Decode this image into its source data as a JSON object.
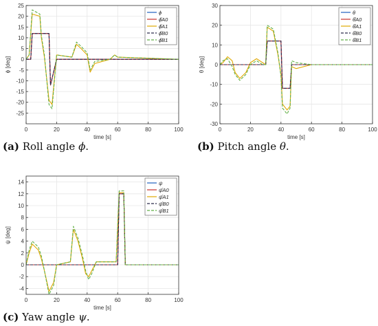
{
  "captions": [
    {
      "label": "(a)",
      "text": "Roll angle",
      "symbol": "ϕ",
      "end": "."
    },
    {
      "label": "(b)",
      "text": "Pitch angle",
      "symbol": "θ",
      "end": "."
    },
    {
      "label": "(c)",
      "text": "Yaw angle",
      "symbol": "ψ",
      "end": "."
    }
  ],
  "chart_data": [
    {
      "type": "line",
      "xlabel": "time [s]",
      "ylabel": "ϕ [deg]",
      "xlim": [
        0,
        100
      ],
      "ylim": [
        -30,
        25
      ],
      "xticks": [
        0,
        20,
        40,
        60,
        80,
        100
      ],
      "yticks": [
        25,
        20,
        15,
        10,
        5,
        0,
        -5,
        -10,
        -15,
        -20,
        -25
      ],
      "grid": true,
      "legend": "top-right",
      "series": [
        {
          "name": "ϕ",
          "color": "#1f5fbf",
          "dash": "",
          "x": [
            0,
            3,
            4,
            15,
            16,
            20,
            100
          ],
          "y": [
            0,
            0,
            12,
            12,
            -12,
            0,
            0
          ]
        },
        {
          "name": "ϕ̂A0",
          "color": "#c8302a",
          "dash": "",
          "x": [
            0,
            3,
            4,
            15,
            16,
            20,
            100
          ],
          "y": [
            0,
            0,
            12,
            12,
            -12,
            0,
            0
          ]
        },
        {
          "name": "ϕ̂A1",
          "color": "#e0a800",
          "dash": "",
          "x": [
            0,
            2,
            4,
            9,
            10,
            12,
            15,
            17,
            20,
            30,
            33,
            36,
            40,
            42,
            45,
            55,
            58,
            60,
            100
          ],
          "y": [
            0,
            2,
            21,
            20,
            10,
            1,
            -19,
            -21,
            2,
            1,
            7,
            5,
            2,
            -6,
            -2,
            0,
            2,
            1,
            0
          ]
        },
        {
          "name": "ϕ̂B0",
          "color": "#2a2a4a",
          "dash": "4,2",
          "x": [
            0,
            3,
            4,
            15,
            16,
            20,
            100
          ],
          "y": [
            0,
            0,
            12,
            12,
            -12,
            0,
            0
          ]
        },
        {
          "name": "ϕ̂B1",
          "color": "#62b048",
          "dash": "4,2",
          "x": [
            0,
            2,
            4,
            9,
            10,
            12,
            15,
            17,
            20,
            30,
            33,
            36,
            40,
            42,
            45,
            55,
            58,
            60,
            100
          ],
          "y": [
            0,
            2,
            23,
            21,
            11,
            2,
            -21,
            -23,
            2,
            1,
            8,
            6,
            3,
            -5,
            -1,
            0,
            2,
            1,
            0
          ]
        }
      ]
    },
    {
      "type": "line",
      "xlabel": "time [s]",
      "ylabel": "θ [deg]",
      "xlim": [
        0,
        100
      ],
      "ylim": [
        -30,
        30
      ],
      "xticks": [
        0,
        20,
        40,
        60,
        80,
        100
      ],
      "yticks": [
        30,
        20,
        10,
        0,
        -10,
        -20,
        -30
      ],
      "grid": true,
      "legend": "top-right",
      "series": [
        {
          "name": "θ",
          "color": "#1f5fbf",
          "dash": "",
          "x": [
            0,
            30,
            31,
            40,
            41,
            46,
            47,
            100
          ],
          "y": [
            0,
            0,
            12,
            12,
            -12,
            -12,
            0,
            0
          ]
        },
        {
          "name": "θ̂A0",
          "color": "#c8302a",
          "dash": "",
          "x": [
            0,
            30,
            31,
            40,
            41,
            46,
            47,
            100
          ],
          "y": [
            0,
            0,
            12,
            12,
            -12,
            -12,
            0,
            0
          ]
        },
        {
          "name": "θ̂A1",
          "color": "#e0a800",
          "dash": "",
          "x": [
            0,
            2,
            5,
            8,
            10,
            13,
            17,
            20,
            24,
            28,
            30,
            31,
            35,
            38,
            40,
            41,
            44,
            46,
            47,
            50,
            60,
            100
          ],
          "y": [
            0,
            1,
            4,
            2,
            -4,
            -7,
            -4,
            1,
            3,
            1,
            0,
            19,
            17,
            5,
            -5,
            -20,
            -23,
            -21,
            -1,
            -2,
            0,
            0
          ]
        },
        {
          "name": "θ̂B0",
          "color": "#2a2a4a",
          "dash": "4,2",
          "x": [
            0,
            30,
            31,
            40,
            41,
            46,
            47,
            100
          ],
          "y": [
            0,
            0,
            12,
            12,
            -12,
            -12,
            0,
            0
          ]
        },
        {
          "name": "θ̂B1",
          "color": "#62b048",
          "dash": "4,2",
          "x": [
            0,
            2,
            5,
            8,
            10,
            13,
            17,
            20,
            24,
            28,
            30,
            31,
            35,
            38,
            40,
            41,
            44,
            46,
            47,
            50,
            60,
            100
          ],
          "y": [
            0,
            2,
            3,
            -1,
            -5,
            -8,
            -5,
            0,
            2,
            0,
            0,
            20,
            18,
            6,
            -6,
            -22,
            -25,
            -22,
            2,
            1,
            0,
            0
          ]
        }
      ]
    },
    {
      "type": "line",
      "xlabel": "time [s]",
      "ylabel": "ψ [deg]",
      "xlim": [
        0,
        100
      ],
      "ylim": [
        -5,
        15
      ],
      "xticks": [
        0,
        20,
        40,
        60,
        80,
        100
      ],
      "yticks": [
        14,
        12,
        10,
        8,
        6,
        4,
        2,
        0,
        -2,
        -4
      ],
      "grid": true,
      "legend": "top-right",
      "series": [
        {
          "name": "ψ",
          "color": "#1f5fbf",
          "dash": "",
          "x": [
            0,
            60,
            61,
            64,
            65,
            100
          ],
          "y": [
            0,
            0,
            12,
            12,
            0,
            0
          ]
        },
        {
          "name": "ψ̂A0",
          "color": "#c8302a",
          "dash": "",
          "x": [
            0,
            60,
            61,
            64,
            65,
            100
          ],
          "y": [
            0,
            0,
            12,
            12,
            0,
            0
          ]
        },
        {
          "name": "ψ̂A1",
          "color": "#e0a800",
          "dash": "",
          "x": [
            0,
            2,
            4,
            8,
            10,
            12,
            15,
            18,
            20,
            29,
            31,
            34,
            37,
            39,
            41,
            43,
            46,
            50,
            59,
            61,
            64,
            65,
            70,
            100
          ],
          "y": [
            0,
            2,
            3.5,
            2.5,
            1,
            -1,
            -4.5,
            -3,
            0,
            0.5,
            6,
            4,
            1,
            -1.5,
            -2,
            -1,
            0.5,
            0.5,
            0.5,
            12.2,
            12.2,
            0,
            0,
            0
          ]
        },
        {
          "name": "ψ̂B0",
          "color": "#2a2a4a",
          "dash": "4,2",
          "x": [
            0,
            60,
            61,
            64,
            65,
            100
          ],
          "y": [
            0,
            0,
            12,
            12,
            0,
            0
          ]
        },
        {
          "name": "ψ̂B1",
          "color": "#62b048",
          "dash": "4,2",
          "x": [
            0,
            2,
            4,
            8,
            10,
            12,
            15,
            18,
            20,
            29,
            31,
            34,
            37,
            39,
            41,
            43,
            46,
            50,
            59,
            61,
            64,
            65,
            70,
            100
          ],
          "y": [
            0,
            2.5,
            4,
            3,
            1.5,
            -1,
            -5,
            -3.5,
            0,
            0.5,
            6.5,
            4.5,
            1.5,
            -1,
            -2.5,
            -1.5,
            0.5,
            0.5,
            0.5,
            12.5,
            12.5,
            0,
            0,
            0
          ]
        }
      ]
    }
  ]
}
